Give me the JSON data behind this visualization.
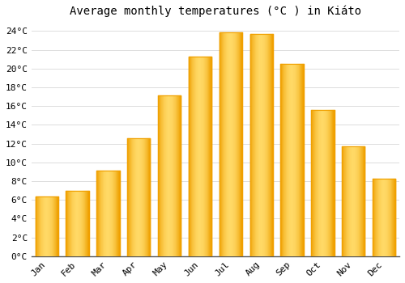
{
  "title": "Average monthly temperatures (°C ) in Kiáto",
  "months": [
    "Jan",
    "Feb",
    "Mar",
    "Apr",
    "May",
    "Jun",
    "Jul",
    "Aug",
    "Sep",
    "Oct",
    "Nov",
    "Dec"
  ],
  "values": [
    6.4,
    7.0,
    9.1,
    12.6,
    17.1,
    21.3,
    23.9,
    23.7,
    20.5,
    15.6,
    11.7,
    8.3
  ],
  "bar_color_center": "#FFD966",
  "bar_color_edge": "#F0A000",
  "background_color": "#FFFFFF",
  "grid_color": "#DDDDDD",
  "ylim": [
    0,
    25
  ],
  "ytick_step": 2,
  "tick_label_suffix": "°C",
  "title_fontsize": 10,
  "tick_fontsize": 8,
  "figsize": [
    5.0,
    3.5
  ],
  "dpi": 100
}
